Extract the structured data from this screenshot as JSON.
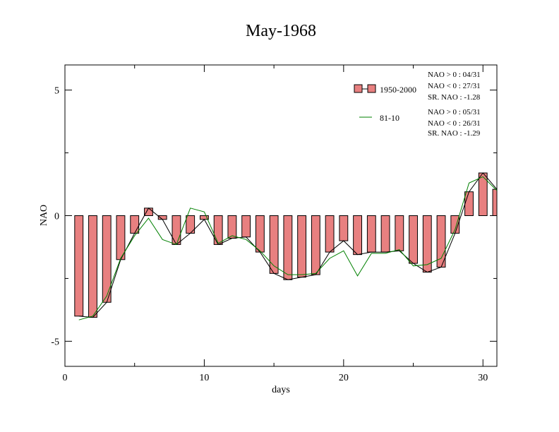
{
  "chart_data": {
    "type": "bar",
    "title": "May-1968",
    "xlabel": "days",
    "ylabel": "NAO",
    "xlim": [
      0,
      31
    ],
    "ylim": [
      -6,
      6
    ],
    "x_ticks": [
      0,
      10,
      20,
      30
    ],
    "y_ticks": [
      -5,
      0,
      5
    ],
    "x_tick_labels": [
      "0",
      "10",
      "20",
      "30"
    ],
    "y_tick_labels": [
      "-5",
      "0",
      "5"
    ],
    "x": [
      1,
      2,
      3,
      4,
      5,
      6,
      7,
      8,
      9,
      10,
      11,
      12,
      13,
      14,
      15,
      16,
      17,
      18,
      19,
      20,
      21,
      22,
      23,
      24,
      25,
      26,
      27,
      28,
      29,
      30,
      31
    ],
    "series": [
      {
        "name": "1950-2000",
        "kind": "bar",
        "color": "#e88080",
        "values": [
          -4.0,
          -4.05,
          -3.45,
          -1.75,
          -0.7,
          0.3,
          -0.15,
          -1.15,
          -0.7,
          -0.15,
          -1.15,
          -0.9,
          -0.85,
          -1.45,
          -2.3,
          -2.55,
          -2.45,
          -2.35,
          -1.45,
          -1.0,
          -1.55,
          -1.45,
          -1.45,
          -1.4,
          -1.9,
          -2.25,
          -2.05,
          -0.7,
          0.95,
          1.7,
          1.05
        ]
      },
      {
        "name": "81-10",
        "kind": "line",
        "color": "#008000",
        "values": [
          -4.15,
          -4.0,
          -3.2,
          -1.7,
          -0.8,
          -0.1,
          -0.95,
          -1.15,
          0.3,
          0.15,
          -1.1,
          -0.8,
          -0.95,
          -1.4,
          -2.0,
          -2.35,
          -2.35,
          -2.3,
          -1.7,
          -1.4,
          -2.4,
          -1.5,
          -1.5,
          -1.35,
          -2.0,
          -1.95,
          -1.7,
          -0.55,
          1.3,
          1.55,
          1.0
        ]
      }
    ],
    "legend": {
      "placement": "top-right",
      "info_1950_2000": [
        "NAO > 0 : 04/31",
        "NAO < 0 : 27/31",
        "SR. NAO : -1.28"
      ],
      "info_81_10": [
        "NAO > 0 : 05/31",
        "NAO < 0 : 26/31",
        "SR. NAO : -1.29"
      ]
    },
    "grid": false,
    "colors": {
      "bar_fill": "#e88080",
      "bar_edge": "#000000",
      "bar_line": "#000000",
      "clim_line": "#008000"
    }
  }
}
